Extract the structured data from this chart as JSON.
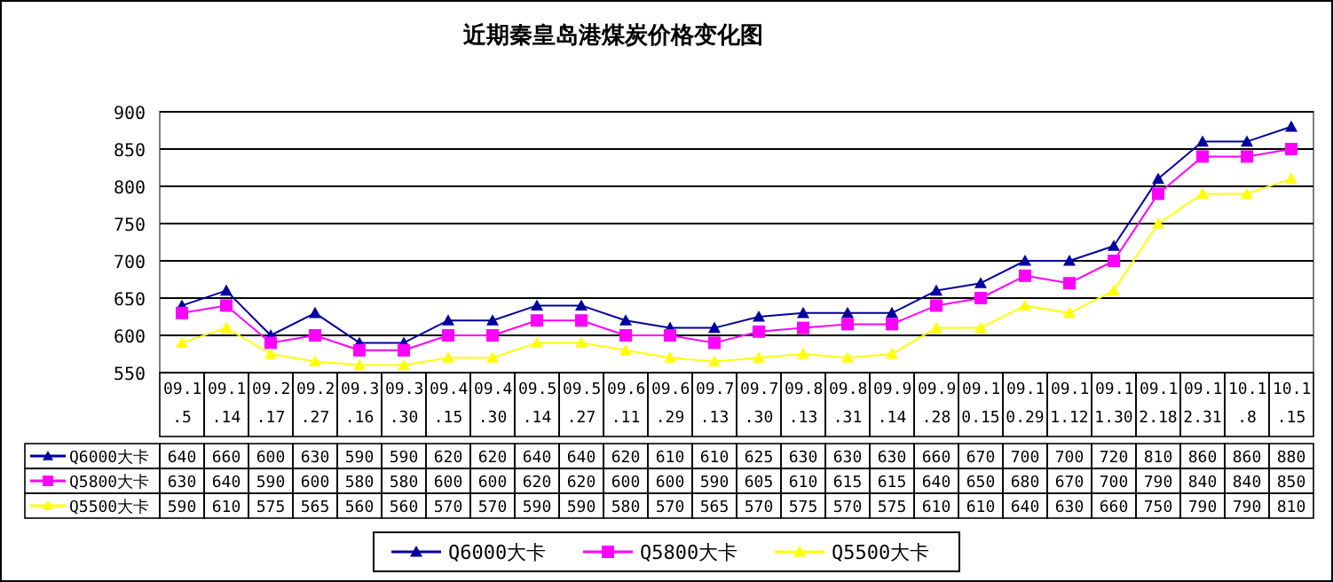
{
  "chart_data": {
    "type": "line",
    "title": "近期秦皇岛港煤炭价格变化图",
    "categories": [
      "09.1.5",
      "09.1.14",
      "09.2.17",
      "09.2.27",
      "09.3.16",
      "09.3.30",
      "09.4.15",
      "09.4.30",
      "09.5.14",
      "09.5.27",
      "09.6.11",
      "09.6.29",
      "09.7.13",
      "09.7.30",
      "09.8.13",
      "09.8.31",
      "09.9.14",
      "09.9.28",
      "09.10.15",
      "09.10.29",
      "09.11.12",
      "09.11.30",
      "09.12.18",
      "09.12.31",
      "10.1.8",
      "10.1.15"
    ],
    "series": [
      {
        "name": "Q6000大卡",
        "color": "#0000a0",
        "marker": "triangle",
        "values": [
          640,
          660,
          600,
          630,
          590,
          590,
          620,
          620,
          640,
          640,
          620,
          610,
          610,
          625,
          630,
          630,
          630,
          660,
          670,
          700,
          700,
          720,
          810,
          860,
          860,
          880
        ]
      },
      {
        "name": "Q5800大卡",
        "color": "#ff00ff",
        "marker": "square",
        "values": [
          630,
          640,
          590,
          600,
          580,
          580,
          600,
          600,
          620,
          620,
          600,
          600,
          590,
          605,
          610,
          615,
          615,
          640,
          650,
          680,
          670,
          700,
          790,
          840,
          840,
          850
        ]
      },
      {
        "name": "Q5500大卡",
        "color": "#ffff00",
        "marker": "triangle",
        "values": [
          590,
          610,
          575,
          565,
          560,
          560,
          570,
          570,
          590,
          590,
          580,
          570,
          565,
          570,
          575,
          570,
          575,
          610,
          610,
          640,
          630,
          660,
          750,
          790,
          790,
          810
        ]
      }
    ],
    "ylim": [
      550,
      900
    ],
    "yticks": [
      550,
      600,
      650,
      700,
      750,
      800,
      850,
      900
    ],
    "grid": "y",
    "legend": "bottom",
    "data_labels": true
  }
}
